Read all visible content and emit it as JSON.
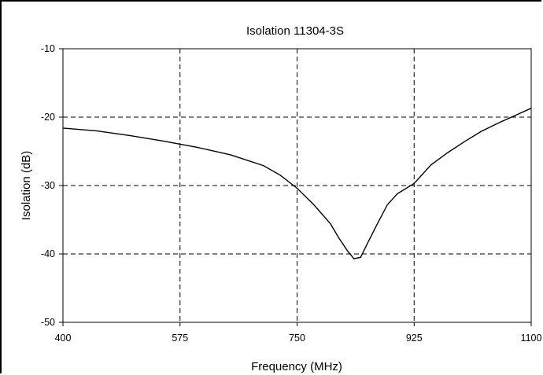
{
  "chart_data": {
    "type": "line",
    "title": "Isolation 11304-3S",
    "xlabel": "Frequency (MHz)",
    "ylabel": "Isolation (dB)",
    "xlim": [
      400,
      1100
    ],
    "ylim": [
      -50,
      -10
    ],
    "x_ticks": [
      400,
      575,
      750,
      925,
      1100
    ],
    "y_ticks": [
      -10,
      -20,
      -30,
      -40,
      -50
    ],
    "grid": true,
    "grid_style": "dashed",
    "series": [
      {
        "color": "#000000",
        "x": [
          400,
          450,
          500,
          550,
          600,
          650,
          700,
          725,
          750,
          775,
          800,
          812,
          825,
          835,
          845,
          855,
          870,
          885,
          900,
          925,
          950,
          975,
          1000,
          1025,
          1050,
          1075,
          1100
        ],
        "y": [
          -21.6,
          -22.0,
          -22.7,
          -23.5,
          -24.4,
          -25.5,
          -27.1,
          -28.5,
          -30.4,
          -32.8,
          -35.6,
          -37.6,
          -39.5,
          -40.7,
          -40.5,
          -38.5,
          -35.6,
          -32.8,
          -31.2,
          -29.7,
          -27.0,
          -25.2,
          -23.6,
          -22.1,
          -20.9,
          -19.8,
          -18.7
        ]
      }
    ]
  }
}
